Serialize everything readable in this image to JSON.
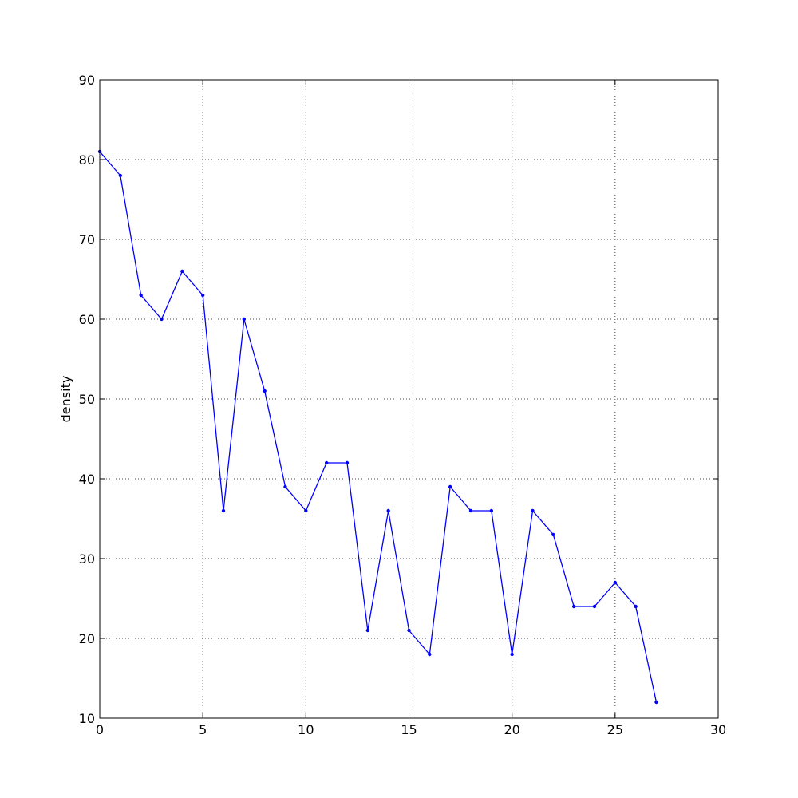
{
  "chart_data": {
    "type": "line",
    "title": "",
    "xlabel": "",
    "ylabel": "density",
    "xlim": [
      0,
      30
    ],
    "ylim": [
      10,
      90
    ],
    "xticks": [
      0,
      5,
      10,
      15,
      20,
      25,
      30
    ],
    "yticks": [
      10,
      20,
      30,
      40,
      50,
      60,
      70,
      80,
      90
    ],
    "grid": true,
    "legend": "none",
    "colors": {
      "line": "#0000ff",
      "grid": "#444444",
      "axes": "#000000"
    },
    "series": [
      {
        "x": [
          0,
          1,
          2,
          3,
          4,
          5,
          6,
          7,
          8,
          9,
          10,
          11,
          12,
          13,
          14,
          15,
          16,
          17,
          18,
          19,
          20,
          21,
          22,
          23,
          24,
          25,
          26,
          27
        ],
        "values": [
          81,
          78,
          63,
          60,
          66,
          63,
          36,
          60,
          51,
          39,
          36,
          42,
          42,
          21,
          36,
          21,
          18,
          39,
          36,
          36,
          18,
          36,
          33,
          24,
          24,
          27,
          24,
          12
        ]
      }
    ]
  }
}
